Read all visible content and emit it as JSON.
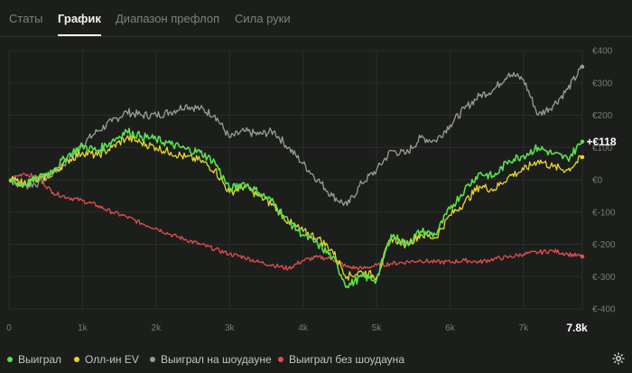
{
  "tabs": [
    {
      "label": "Статы",
      "active": false
    },
    {
      "label": "График",
      "active": true
    },
    {
      "label": "Диапазон префлоп",
      "active": false
    },
    {
      "label": "Сила руки",
      "active": false
    }
  ],
  "current_value_label": "+€118",
  "x_end_label": "7.8k",
  "chart_data": {
    "type": "line",
    "x_ticks": [
      "0",
      "1k",
      "2k",
      "3k",
      "4k",
      "5k",
      "6k",
      "7k"
    ],
    "y_ticks": [
      "€400",
      "€300",
      "€200",
      "€100",
      "€0",
      "€-100",
      "€-200",
      "€-300",
      "€-400"
    ],
    "xlim": [
      0,
      7800
    ],
    "ylim": [
      -400,
      400
    ],
    "grid": true,
    "legend_position": "bottom-left",
    "x": [
      0,
      200,
      400,
      600,
      800,
      1000,
      1200,
      1400,
      1600,
      1800,
      2000,
      2200,
      2400,
      2600,
      2800,
      3000,
      3200,
      3400,
      3600,
      3800,
      4000,
      4200,
      4400,
      4600,
      4800,
      5000,
      5200,
      5400,
      5600,
      5800,
      6000,
      6200,
      6400,
      6600,
      6800,
      7000,
      7200,
      7400,
      7600,
      7800
    ],
    "series": [
      {
        "name": "Выиграл",
        "color": "#5ce04e",
        "values": [
          0,
          -15,
          5,
          30,
          75,
          105,
          90,
          120,
          150,
          135,
          125,
          110,
          95,
          85,
          55,
          -30,
          -10,
          -40,
          -70,
          -130,
          -170,
          -200,
          -240,
          -330,
          -300,
          -310,
          -170,
          -200,
          -160,
          -170,
          -90,
          -30,
          20,
          10,
          60,
          75,
          100,
          80,
          65,
          118
        ]
      },
      {
        "name": "Олл-ин EV",
        "color": "#e8d82e",
        "values": [
          0,
          -10,
          0,
          20,
          60,
          85,
          75,
          100,
          130,
          115,
          100,
          85,
          70,
          60,
          30,
          -40,
          -20,
          -50,
          -80,
          -130,
          -160,
          -180,
          -220,
          -300,
          -285,
          -300,
          -180,
          -200,
          -170,
          -180,
          -110,
          -70,
          -20,
          -30,
          10,
          30,
          60,
          40,
          30,
          70
        ]
      },
      {
        "name": "Выиграл на шоудауне",
        "color": "#9a9c98",
        "values": [
          0,
          -20,
          -10,
          20,
          60,
          110,
          150,
          180,
          210,
          200,
          200,
          210,
          230,
          220,
          200,
          130,
          150,
          140,
          150,
          100,
          50,
          0,
          -50,
          -80,
          -10,
          30,
          90,
          80,
          130,
          120,
          170,
          220,
          260,
          280,
          330,
          310,
          200,
          230,
          280,
          350
        ]
      },
      {
        "name": "Выиграл без шоудауна",
        "color": "#e0504e",
        "values": [
          0,
          20,
          5,
          -40,
          -55,
          -65,
          -80,
          -100,
          -115,
          -135,
          -150,
          -170,
          -185,
          -200,
          -215,
          -230,
          -240,
          -255,
          -265,
          -275,
          -250,
          -240,
          -245,
          -270,
          -275,
          -265,
          -260,
          -255,
          -250,
          -255,
          -255,
          -250,
          -255,
          -245,
          -240,
          -230,
          -225,
          -220,
          -230,
          -238
        ]
      }
    ]
  }
}
